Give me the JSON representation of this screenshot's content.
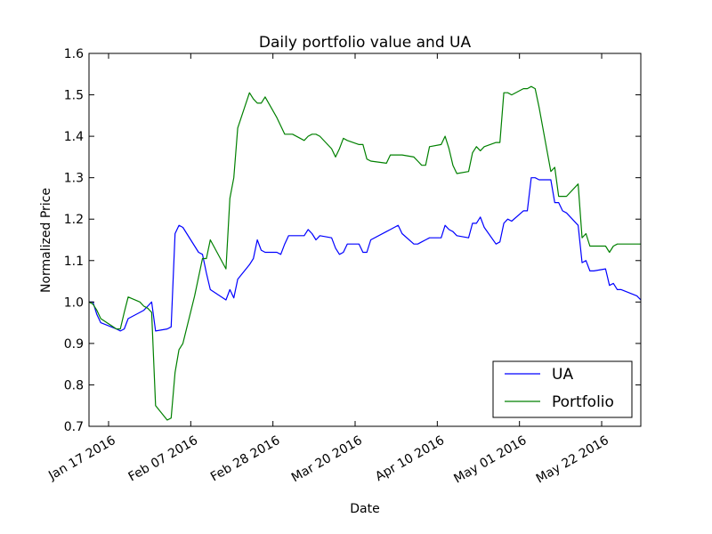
{
  "chart_data": {
    "type": "line",
    "title": "Daily portfolio value and UA",
    "xlabel": "Date",
    "ylabel": "Normalized Price",
    "xlim": [
      "2016-01-12",
      "2016-06-01"
    ],
    "ylim": [
      0.7,
      1.6
    ],
    "yticks": [
      0.7,
      0.8,
      0.9,
      1.0,
      1.1,
      1.2,
      1.3,
      1.4,
      1.5,
      1.6
    ],
    "ytick_labels": [
      "0.7",
      "0.8",
      "0.9",
      "1.0",
      "1.1",
      "1.2",
      "1.3",
      "1.4",
      "1.5",
      "1.6"
    ],
    "xticks": [
      "2016-01-17",
      "2016-02-07",
      "2016-02-28",
      "2016-03-20",
      "2016-04-10",
      "2016-05-01",
      "2016-05-22"
    ],
    "xtick_labels": [
      "Jan 17 2016",
      "Feb 07 2016",
      "Feb 28 2016",
      "Mar 20 2016",
      "Apr 10 2016",
      "May 01 2016",
      "May 22 2016"
    ],
    "grid": false,
    "legend_position": "bottom-right",
    "series": [
      {
        "name": "UA",
        "color": "#0000ff",
        "x": [
          "2016-01-12",
          "2016-01-13",
          "2016-01-14",
          "2016-01-15",
          "2016-01-19",
          "2016-01-20",
          "2016-01-21",
          "2016-01-22",
          "2016-01-25",
          "2016-01-26",
          "2016-01-27",
          "2016-01-28",
          "2016-01-29",
          "2016-02-01",
          "2016-02-02",
          "2016-02-03",
          "2016-02-04",
          "2016-02-05",
          "2016-02-08",
          "2016-02-09",
          "2016-02-10",
          "2016-02-11",
          "2016-02-12",
          "2016-02-16",
          "2016-02-17",
          "2016-02-18",
          "2016-02-19",
          "2016-02-22",
          "2016-02-23",
          "2016-02-24",
          "2016-02-25",
          "2016-02-26",
          "2016-02-29",
          "2016-03-01",
          "2016-03-02",
          "2016-03-03",
          "2016-03-04",
          "2016-03-07",
          "2016-03-08",
          "2016-03-09",
          "2016-03-10",
          "2016-03-11",
          "2016-03-14",
          "2016-03-15",
          "2016-03-16",
          "2016-03-17",
          "2016-03-18",
          "2016-03-21",
          "2016-03-22",
          "2016-03-23",
          "2016-03-24",
          "2016-03-28",
          "2016-03-29",
          "2016-03-30",
          "2016-03-31",
          "2016-04-01",
          "2016-04-04",
          "2016-04-05",
          "2016-04-06",
          "2016-04-07",
          "2016-04-08",
          "2016-04-11",
          "2016-04-12",
          "2016-04-13",
          "2016-04-14",
          "2016-04-15",
          "2016-04-18",
          "2016-04-19",
          "2016-04-20",
          "2016-04-21",
          "2016-04-22",
          "2016-04-25",
          "2016-04-26",
          "2016-04-27",
          "2016-04-28",
          "2016-04-29",
          "2016-05-02",
          "2016-05-03",
          "2016-05-04",
          "2016-05-05",
          "2016-05-06",
          "2016-05-09",
          "2016-05-10",
          "2016-05-11",
          "2016-05-12",
          "2016-05-13",
          "2016-05-16",
          "2016-05-17",
          "2016-05-18",
          "2016-05-19",
          "2016-05-20",
          "2016-05-23",
          "2016-05-24",
          "2016-05-25",
          "2016-05-26",
          "2016-05-27",
          "2016-05-31",
          "2016-06-01"
        ],
        "y": [
          1.0,
          1.0,
          0.97,
          0.95,
          0.935,
          0.93,
          0.935,
          0.96,
          0.975,
          0.98,
          0.99,
          1.0,
          0.93,
          0.935,
          0.94,
          1.165,
          1.185,
          1.18,
          1.135,
          1.12,
          1.115,
          1.07,
          1.03,
          1.005,
          1.03,
          1.01,
          1.055,
          1.09,
          1.105,
          1.15,
          1.125,
          1.12,
          1.12,
          1.115,
          1.14,
          1.16,
          1.16,
          1.16,
          1.175,
          1.165,
          1.15,
          1.16,
          1.155,
          1.13,
          1.115,
          1.12,
          1.14,
          1.14,
          1.12,
          1.12,
          1.15,
          1.17,
          1.175,
          1.18,
          1.185,
          1.165,
          1.14,
          1.14,
          1.145,
          1.15,
          1.155,
          1.155,
          1.185,
          1.175,
          1.17,
          1.16,
          1.155,
          1.19,
          1.19,
          1.205,
          1.18,
          1.14,
          1.145,
          1.19,
          1.2,
          1.195,
          1.22,
          1.22,
          1.3,
          1.3,
          1.295,
          1.295,
          1.24,
          1.24,
          1.22,
          1.215,
          1.185,
          1.095,
          1.1,
          1.075,
          1.075,
          1.08,
          1.04,
          1.045,
          1.03,
          1.03,
          1.015,
          1.005
        ]
      },
      {
        "name": "Portfolio",
        "color": "#008000",
        "x": [
          "2016-01-12",
          "2016-01-13",
          "2016-01-14",
          "2016-01-15",
          "2016-01-19",
          "2016-01-20",
          "2016-01-21",
          "2016-01-22",
          "2016-01-25",
          "2016-01-26",
          "2016-01-27",
          "2016-01-28",
          "2016-01-29",
          "2016-02-01",
          "2016-02-02",
          "2016-02-03",
          "2016-02-04",
          "2016-02-05",
          "2016-02-08",
          "2016-02-09",
          "2016-02-10",
          "2016-02-11",
          "2016-02-12",
          "2016-02-16",
          "2016-02-17",
          "2016-02-18",
          "2016-02-19",
          "2016-02-22",
          "2016-02-23",
          "2016-02-24",
          "2016-02-25",
          "2016-02-26",
          "2016-02-29",
          "2016-03-01",
          "2016-03-02",
          "2016-03-03",
          "2016-03-04",
          "2016-03-07",
          "2016-03-08",
          "2016-03-09",
          "2016-03-10",
          "2016-03-11",
          "2016-03-14",
          "2016-03-15",
          "2016-03-16",
          "2016-03-17",
          "2016-03-18",
          "2016-03-21",
          "2016-03-22",
          "2016-03-23",
          "2016-03-24",
          "2016-03-28",
          "2016-03-29",
          "2016-03-30",
          "2016-03-31",
          "2016-04-01",
          "2016-04-04",
          "2016-04-05",
          "2016-04-06",
          "2016-04-07",
          "2016-04-08",
          "2016-04-11",
          "2016-04-12",
          "2016-04-13",
          "2016-04-14",
          "2016-04-15",
          "2016-04-18",
          "2016-04-19",
          "2016-04-20",
          "2016-04-21",
          "2016-04-22",
          "2016-04-25",
          "2016-04-26",
          "2016-04-27",
          "2016-04-28",
          "2016-04-29",
          "2016-05-02",
          "2016-05-03",
          "2016-05-04",
          "2016-05-05",
          "2016-05-06",
          "2016-05-09",
          "2016-05-10",
          "2016-05-11",
          "2016-05-12",
          "2016-05-13",
          "2016-05-16",
          "2016-05-17",
          "2016-05-18",
          "2016-05-19",
          "2016-05-20",
          "2016-05-23",
          "2016-05-24",
          "2016-05-25",
          "2016-05-26",
          "2016-05-27",
          "2016-05-31",
          "2016-06-01"
        ],
        "y": [
          1.0,
          0.995,
          0.98,
          0.96,
          0.935,
          0.935,
          0.975,
          1.012,
          1.0,
          0.99,
          0.985,
          0.975,
          0.75,
          0.715,
          0.72,
          0.83,
          0.885,
          0.9,
          1.015,
          1.06,
          1.105,
          1.105,
          1.15,
          1.08,
          1.25,
          1.3,
          1.42,
          1.505,
          1.49,
          1.48,
          1.48,
          1.495,
          1.445,
          1.425,
          1.405,
          1.405,
          1.405,
          1.39,
          1.4,
          1.405,
          1.405,
          1.4,
          1.37,
          1.35,
          1.37,
          1.395,
          1.39,
          1.38,
          1.38,
          1.345,
          1.34,
          1.335,
          1.355,
          1.355,
          1.355,
          1.355,
          1.35,
          1.34,
          1.33,
          1.33,
          1.375,
          1.38,
          1.4,
          1.37,
          1.33,
          1.31,
          1.315,
          1.36,
          1.375,
          1.365,
          1.375,
          1.385,
          1.385,
          1.505,
          1.505,
          1.5,
          1.515,
          1.515,
          1.52,
          1.515,
          1.47,
          1.315,
          1.325,
          1.255,
          1.255,
          1.255,
          1.285,
          1.155,
          1.165,
          1.135,
          1.135,
          1.135,
          1.12,
          1.135,
          1.14,
          1.14,
          1.14,
          1.14
        ]
      }
    ]
  }
}
